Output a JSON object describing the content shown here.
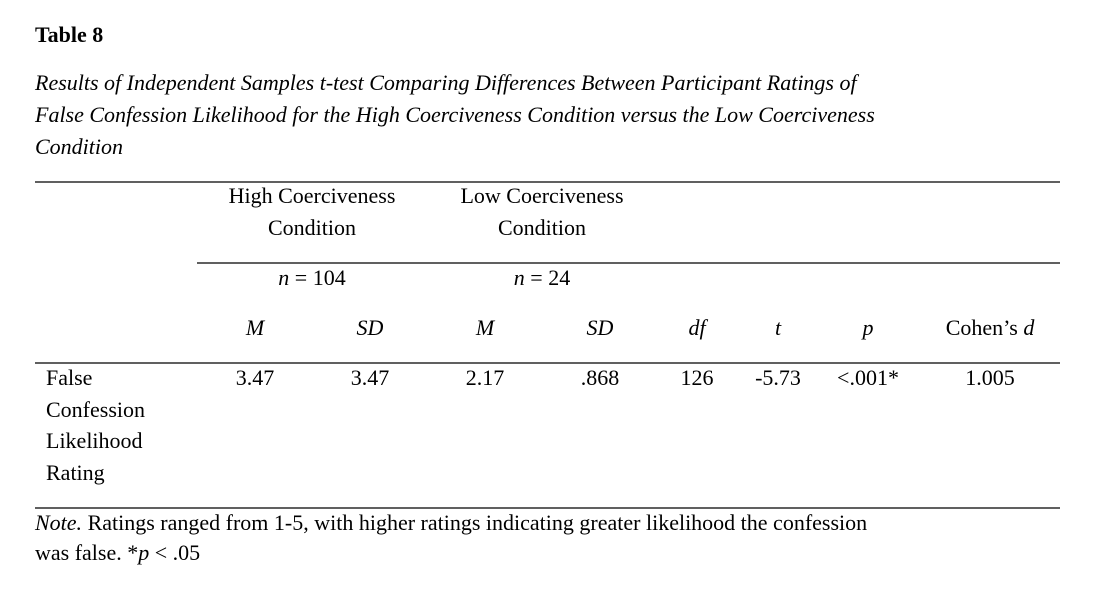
{
  "header": {
    "title": "Table 8",
    "subtitle_lines": [
      "Results of Independent Samples t-test Comparing Differences Between Participant Ratings of",
      "False Confession Likelihood for the High Coerciveness Condition versus the Low Coerciveness",
      "Condition"
    ]
  },
  "table": {
    "group_headers": [
      {
        "lines": [
          "High Coerciveness",
          "Condition"
        ],
        "n_symbol": "n",
        "n_text": " = 104"
      },
      {
        "lines": [
          "Low Coerciveness",
          "Condition"
        ],
        "n_symbol": "n",
        "n_text": " = 24"
      }
    ],
    "columns": [
      "M",
      "SD",
      "M",
      "SD",
      "df",
      "t",
      "p"
    ],
    "effect_column": {
      "text": "Cohen’s ",
      "symbol": "d"
    },
    "rows": [
      {
        "label_lines": [
          "False",
          "Confession",
          "Likelihood",
          "Rating"
        ],
        "values": [
          "3.47",
          "3.47",
          "2.17",
          ".868",
          "126",
          "-5.73",
          "<.001*",
          "1.005"
        ]
      }
    ]
  },
  "note": {
    "label": "Note.",
    "line1": " Ratings ranged from 1-5, with higher ratings indicating greater likelihood the confession",
    "line2": "was false. ",
    "star": "*",
    "p_symbol": "p",
    "p_text": " < .05"
  }
}
